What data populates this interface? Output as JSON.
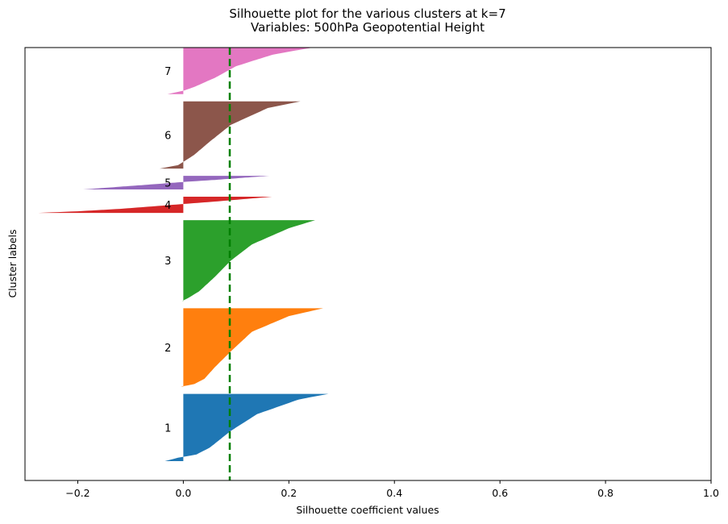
{
  "chart_data": {
    "type": "silhouette",
    "title_line1": "Silhouette plot for the various clusters at k=7",
    "title_line2": "Variables: 500hPa Geopotential Height",
    "xlabel": "Silhouette coefficient values",
    "ylabel": "Cluster labels",
    "xlim": [
      -0.3,
      1.0
    ],
    "xticks": [
      -0.2,
      0.0,
      0.2,
      0.4,
      0.6,
      0.8,
      1.0
    ],
    "xtick_labels": [
      "−0.2",
      "0.0",
      "0.2",
      "0.4",
      "0.6",
      "0.8",
      "1.0"
    ],
    "yticks_shown": false,
    "average_silhouette": 0.088,
    "clusters": [
      {
        "label": "1",
        "color": "#1f77b4",
        "max": 0.275,
        "min": -0.035,
        "size": 133,
        "profile": [
          [
            0,
            0.275
          ],
          [
            0.08,
            0.22
          ],
          [
            0.3,
            0.14
          ],
          [
            0.55,
            0.09
          ],
          [
            0.8,
            0.05
          ],
          [
            0.9,
            0.025
          ],
          [
            0.93,
            0.005
          ],
          [
            0.95,
            -0.01
          ],
          [
            1,
            -0.035
          ]
        ]
      },
      {
        "label": "2",
        "color": "#ff7f0e",
        "max": 0.265,
        "min": -0.005,
        "size": 155,
        "profile": [
          [
            0,
            0.265
          ],
          [
            0.1,
            0.2
          ],
          [
            0.3,
            0.13
          ],
          [
            0.55,
            0.09
          ],
          [
            0.75,
            0.06
          ],
          [
            0.9,
            0.04
          ],
          [
            0.97,
            0.02
          ],
          [
            1,
            -0.005
          ]
        ]
      },
      {
        "label": "3",
        "color": "#2ca02c",
        "max": 0.25,
        "min": -0.002,
        "size": 160,
        "profile": [
          [
            0,
            0.25
          ],
          [
            0.1,
            0.2
          ],
          [
            0.3,
            0.13
          ],
          [
            0.5,
            0.09
          ],
          [
            0.7,
            0.06
          ],
          [
            0.88,
            0.03
          ],
          [
            0.96,
            0.01
          ],
          [
            1,
            -0.002
          ]
        ]
      },
      {
        "label": "4",
        "color": "#d62728",
        "max": 0.168,
        "min": -0.275,
        "size": 32,
        "profile": [
          [
            0,
            0.168
          ],
          [
            0.3,
            0.06
          ],
          [
            0.45,
            0.0
          ],
          [
            0.55,
            -0.04
          ],
          [
            0.75,
            -0.12
          ],
          [
            0.9,
            -0.2
          ],
          [
            1,
            -0.275
          ]
        ]
      },
      {
        "label": "5",
        "color": "#9467bd",
        "max": 0.163,
        "min": -0.19,
        "size": 27,
        "profile": [
          [
            0,
            0.163
          ],
          [
            0.3,
            0.06
          ],
          [
            0.45,
            0.0
          ],
          [
            0.6,
            -0.05
          ],
          [
            0.8,
            -0.12
          ],
          [
            1,
            -0.19
          ]
        ]
      },
      {
        "label": "6",
        "color": "#8c564b",
        "max": 0.222,
        "min": -0.045,
        "size": 133,
        "profile": [
          [
            0,
            0.222
          ],
          [
            0.1,
            0.16
          ],
          [
            0.35,
            0.09
          ],
          [
            0.6,
            0.05
          ],
          [
            0.8,
            0.02
          ],
          [
            0.95,
            -0.01
          ],
          [
            1,
            -0.045
          ]
        ]
      },
      {
        "label": "7",
        "color": "#e377c2",
        "max": 0.245,
        "min": -0.03,
        "size": 92,
        "profile": [
          [
            0,
            0.245
          ],
          [
            0.15,
            0.17
          ],
          [
            0.4,
            0.1
          ],
          [
            0.65,
            0.06
          ],
          [
            0.85,
            0.02
          ],
          [
            0.93,
            0.0
          ],
          [
            1,
            -0.03
          ]
        ]
      }
    ]
  }
}
